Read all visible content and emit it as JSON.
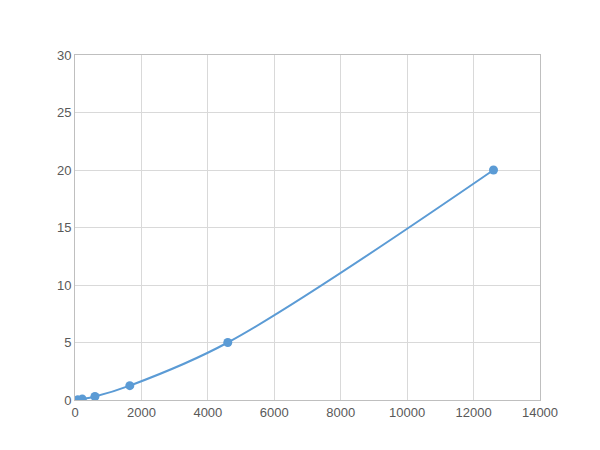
{
  "chart_data": {
    "type": "line",
    "x": [
      80,
      220,
      600,
      1650,
      4600,
      12600
    ],
    "values": [
      0.02,
      0.08,
      0.3,
      1.25,
      5,
      20
    ],
    "color": "#5b9bd5",
    "marker": "circle",
    "line_style": "solid",
    "xlim": [
      0,
      14000
    ],
    "xticks": [
      0,
      2000,
      4000,
      6000,
      8000,
      10000,
      12000,
      14000
    ],
    "ylim": [
      0,
      30
    ],
    "yticks": [
      0,
      5,
      10,
      15,
      20,
      25,
      30
    ],
    "grid": true
  }
}
